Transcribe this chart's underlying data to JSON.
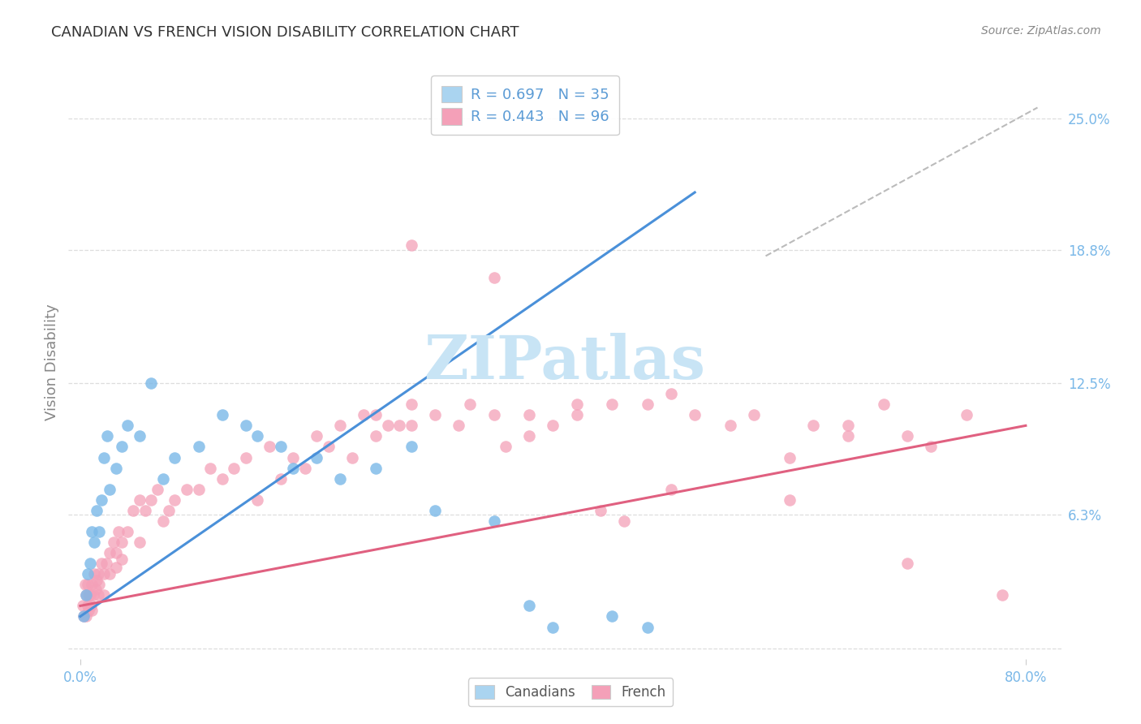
{
  "title": "CANADIAN VS FRENCH VISION DISABILITY CORRELATION CHART",
  "source": "Source: ZipAtlas.com",
  "ylabel": "Vision Disability",
  "ytick_labels": [
    "6.3%",
    "12.5%",
    "18.8%",
    "25.0%"
  ],
  "ytick_values": [
    6.3,
    12.5,
    18.8,
    25.0
  ],
  "grid_yticks": [
    0.0,
    6.3,
    12.5,
    18.8,
    25.0
  ],
  "xlim": [
    0.0,
    80.0
  ],
  "ylim": [
    0.0,
    25.0
  ],
  "canadian_color": "#7ab8e8",
  "canadian_color_fill": "#aad4f0",
  "french_color": "#f4a0b8",
  "french_line_color": "#e06080",
  "canadian_line_color": "#4a90d9",
  "dashed_line_color": "#bbbbbb",
  "grid_color": "#dddddd",
  "watermark_color": "#c8e4f5",
  "title_color": "#333333",
  "source_color": "#888888",
  "ylabel_color": "#888888",
  "tick_label_color": "#7ab8e8",
  "right_tick_color": "#7ab8e8",
  "legend_text_color": "#5b9bd5",
  "bottom_legend_text_color": "#555555",
  "canadian_x": [
    0.3,
    0.5,
    0.6,
    0.8,
    1.0,
    1.2,
    1.4,
    1.6,
    1.8,
    2.0,
    2.3,
    2.5,
    3.0,
    3.5,
    4.0,
    5.0,
    6.0,
    7.0,
    8.0,
    10.0,
    12.0,
    14.0,
    15.0,
    17.0,
    18.0,
    20.0,
    22.0,
    25.0,
    28.0,
    30.0,
    35.0,
    38.0,
    40.0,
    45.0,
    48.0
  ],
  "canadian_y": [
    1.5,
    2.5,
    3.5,
    4.0,
    5.5,
    5.0,
    6.5,
    5.5,
    7.0,
    9.0,
    10.0,
    7.5,
    8.5,
    9.5,
    10.5,
    10.0,
    12.5,
    8.0,
    9.0,
    9.5,
    11.0,
    10.5,
    10.0,
    9.5,
    8.5,
    9.0,
    8.0,
    8.5,
    9.5,
    6.5,
    6.0,
    2.0,
    1.0,
    1.5,
    1.0
  ],
  "french_x": [
    0.2,
    0.3,
    0.4,
    0.5,
    0.5,
    0.6,
    0.6,
    0.7,
    0.7,
    0.8,
    0.9,
    1.0,
    1.0,
    1.1,
    1.2,
    1.3,
    1.4,
    1.5,
    1.5,
    1.6,
    1.8,
    2.0,
    2.0,
    2.2,
    2.5,
    2.5,
    2.8,
    3.0,
    3.0,
    3.2,
    3.5,
    3.5,
    4.0,
    4.5,
    5.0,
    5.0,
    5.5,
    6.0,
    6.5,
    7.0,
    7.5,
    8.0,
    9.0,
    10.0,
    11.0,
    12.0,
    13.0,
    14.0,
    15.0,
    16.0,
    17.0,
    18.0,
    19.0,
    20.0,
    21.0,
    22.0,
    23.0,
    24.0,
    25.0,
    26.0,
    27.0,
    28.0,
    30.0,
    32.0,
    33.0,
    35.0,
    36.0,
    38.0,
    40.0,
    42.0,
    44.0,
    46.0,
    48.0,
    50.0,
    52.0,
    55.0,
    57.0,
    60.0,
    62.0,
    65.0,
    68.0,
    70.0,
    72.0,
    75.0,
    78.0,
    38.0,
    42.0,
    25.0,
    28.0,
    50.0,
    65.0,
    70.0,
    28.0,
    35.0,
    45.0,
    60.0
  ],
  "french_y": [
    2.0,
    1.5,
    3.0,
    2.5,
    1.5,
    2.0,
    3.0,
    2.5,
    1.8,
    2.5,
    2.0,
    3.0,
    1.8,
    2.5,
    3.5,
    2.8,
    3.2,
    3.5,
    2.5,
    3.0,
    4.0,
    3.5,
    2.5,
    4.0,
    4.5,
    3.5,
    5.0,
    4.5,
    3.8,
    5.5,
    5.0,
    4.2,
    5.5,
    6.5,
    5.0,
    7.0,
    6.5,
    7.0,
    7.5,
    6.0,
    6.5,
    7.0,
    7.5,
    7.5,
    8.5,
    8.0,
    8.5,
    9.0,
    7.0,
    9.5,
    8.0,
    9.0,
    8.5,
    10.0,
    9.5,
    10.5,
    9.0,
    11.0,
    10.0,
    10.5,
    10.5,
    11.5,
    11.0,
    10.5,
    11.5,
    11.0,
    9.5,
    10.0,
    10.5,
    11.0,
    6.5,
    6.0,
    11.5,
    12.0,
    11.0,
    10.5,
    11.0,
    9.0,
    10.5,
    10.0,
    11.5,
    10.0,
    9.5,
    11.0,
    2.5,
    11.0,
    11.5,
    11.0,
    10.5,
    7.5,
    10.5,
    4.0,
    19.0,
    17.5,
    11.5,
    7.0
  ],
  "can_line_x0": 0.0,
  "can_line_y0": 1.5,
  "can_line_x1": 52.0,
  "can_line_y1": 21.5,
  "fr_line_x0": 0.0,
  "fr_line_y0": 2.0,
  "fr_line_x1": 80.0,
  "fr_line_y1": 10.5,
  "dash_x0": 58.0,
  "dash_y0": 18.5,
  "dash_x1": 81.0,
  "dash_y1": 25.5
}
